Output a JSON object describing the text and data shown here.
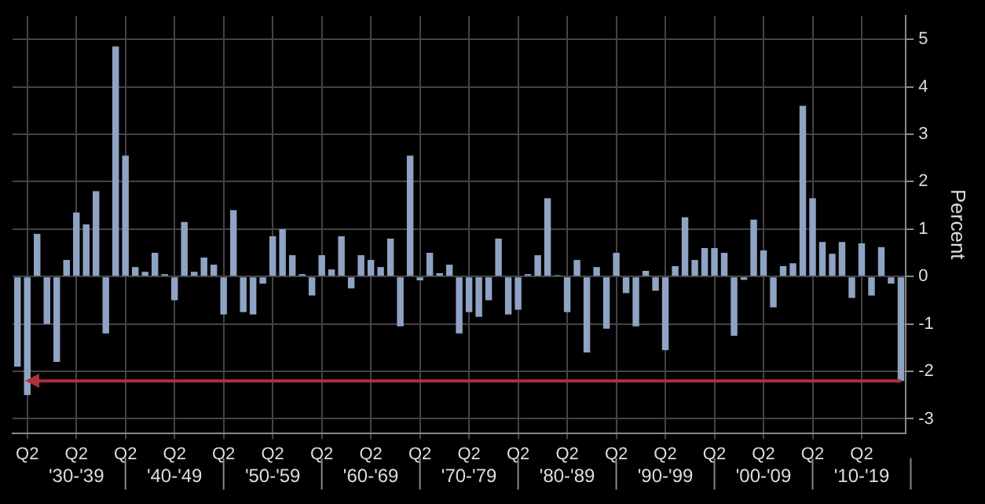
{
  "chart_data": {
    "type": "bar",
    "ylabel": "Percent",
    "categories": [
      null,
      "Q2",
      null,
      null,
      null,
      null,
      "Q2",
      null,
      null,
      null,
      null,
      "Q2",
      null,
      null,
      null,
      null,
      "Q2",
      null,
      null,
      null,
      null,
      "Q2",
      null,
      null,
      null,
      null,
      "Q2",
      null,
      null,
      null,
      null,
      "Q2",
      null,
      null,
      null,
      null,
      "Q2",
      null,
      null,
      null,
      null,
      "Q2",
      null,
      null,
      null,
      null,
      "Q2",
      null,
      null,
      null,
      null,
      "Q2",
      null,
      null,
      null,
      null,
      "Q2",
      null,
      null,
      null,
      null,
      "Q2",
      null,
      null,
      null,
      null,
      "Q2",
      null,
      null,
      null,
      null,
      "Q2",
      null,
      null,
      null,
      null,
      "Q2",
      null,
      null,
      null,
      null,
      "Q2",
      null,
      null,
      null,
      null,
      "Q2",
      null,
      null,
      null,
      null
    ],
    "values": [
      -1.9,
      -2.5,
      0.9,
      -1.0,
      -1.8,
      0.35,
      1.35,
      1.1,
      1.8,
      -1.2,
      4.85,
      2.55,
      0.2,
      0.1,
      0.5,
      0.05,
      -0.5,
      1.15,
      0.1,
      0.4,
      0.25,
      -0.8,
      1.4,
      -0.75,
      -0.8,
      -0.15,
      0.85,
      1.0,
      0.45,
      0.05,
      -0.4,
      0.45,
      0.15,
      0.85,
      -0.25,
      0.45,
      0.35,
      0.2,
      0.8,
      -1.05,
      2.55,
      -0.08,
      0.5,
      0.07,
      0.25,
      -1.2,
      -0.75,
      -0.85,
      -0.5,
      0.8,
      -0.8,
      -0.7,
      0.05,
      0.45,
      1.65,
      0.03,
      -0.75,
      0.35,
      -1.6,
      0.2,
      -1.1,
      0.5,
      -0.35,
      -1.05,
      0.12,
      -0.3,
      -1.55,
      0.22,
      1.25,
      0.35,
      0.6,
      0.6,
      0.5,
      -1.25,
      -0.07,
      1.2,
      0.55,
      -0.65,
      0.22,
      0.28,
      3.6,
      1.65,
      0.73,
      0.48,
      0.73,
      -0.45,
      0.7,
      -0.4,
      0.62,
      -0.15,
      -2.2
    ],
    "color": "#8fa3c4",
    "ylim": [
      -3.3,
      5.5
    ],
    "yticks": [
      -3,
      -2,
      -1,
      0,
      1,
      2,
      3,
      4,
      5
    ],
    "grid": true,
    "ref_lines": [
      {
        "axis": "y",
        "value": -2.2,
        "color": "#b0303a"
      }
    ],
    "annotations": [
      "'30-'39",
      "'40-'49",
      "'50-'59",
      "'60-'69",
      "'70-'79",
      "'80-'89",
      "'90-'99",
      "'00-'09",
      "'10-'19"
    ]
  }
}
